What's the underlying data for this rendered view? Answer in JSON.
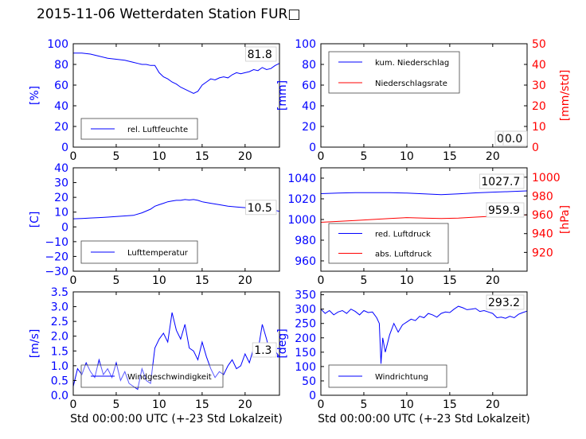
{
  "title": "2015-11-06 Wetterdaten Station FUR□",
  "colors": {
    "axis_left": "#0000ff",
    "axis_right": "#ff0000",
    "series_blue": "#0000ff",
    "series_red": "#ff0000",
    "legend_border": "#444444",
    "value_box_border": "#cccccc"
  },
  "chart_data": [
    {
      "type": "line",
      "panel": "top-left",
      "xlim": [
        0,
        24
      ],
      "xticks": [
        0,
        5,
        10,
        15,
        20
      ],
      "ylim": [
        0,
        100
      ],
      "yticks": [
        0,
        20,
        40,
        60,
        80,
        100
      ],
      "ylabel": "[%]",
      "grid": false,
      "legend_position": "lower-left",
      "series": [
        {
          "name": "rel. Luftfeuchte",
          "color": "#0000ff",
          "x": [
            0,
            1,
            2,
            3,
            4,
            5,
            6,
            7,
            7.5,
            8,
            8.5,
            9,
            9.5,
            10,
            10.5,
            11,
            11.5,
            12,
            12.5,
            13,
            13.5,
            14,
            14.5,
            15,
            15.5,
            16,
            16.5,
            17,
            17.5,
            18,
            18.5,
            19,
            19.5,
            20,
            20.5,
            21,
            21.5,
            22,
            22.5,
            23,
            23.5,
            24
          ],
          "y": [
            91,
            91,
            90,
            88,
            86,
            85,
            84,
            82,
            81,
            80,
            80,
            79,
            79,
            72,
            68,
            66,
            63,
            61,
            58,
            56,
            54,
            52,
            54,
            60,
            63,
            66,
            65,
            67,
            68,
            67,
            70,
            72,
            71,
            72,
            73,
            75,
            74,
            77,
            75,
            76,
            79,
            81
          ]
        }
      ],
      "value_label": "81.8"
    },
    {
      "type": "line",
      "panel": "top-right",
      "xlim": [
        0,
        24
      ],
      "xticks": [
        0,
        5,
        10,
        15,
        20
      ],
      "ylim": [
        0,
        100
      ],
      "yticks": [
        0,
        20,
        40,
        60,
        80,
        100
      ],
      "ylabel": "[mm]",
      "y2lim": [
        0,
        50
      ],
      "y2ticks": [
        0,
        10,
        20,
        30,
        40,
        50
      ],
      "y2label": "[mm/std]",
      "grid": false,
      "legend_position": "upper-left",
      "series": [
        {
          "name": "kum. Niederschlag",
          "color": "#0000ff",
          "axis": "left",
          "x": [
            0,
            24
          ],
          "y": [
            0,
            0
          ]
        },
        {
          "name": "Niederschlagsrate",
          "color": "#ff0000",
          "axis": "right",
          "x": [
            0,
            24
          ],
          "y": [
            0,
            0
          ]
        }
      ],
      "value_labels": [
        "0.0",
        "0.0"
      ]
    },
    {
      "type": "line",
      "panel": "middle-left",
      "xlim": [
        0,
        24
      ],
      "xticks": [
        0,
        5,
        10,
        15,
        20
      ],
      "ylim": [
        -30,
        40
      ],
      "yticks": [
        -30,
        -20,
        -10,
        0,
        10,
        20,
        30,
        40
      ],
      "ylabel": "[C]",
      "grid": false,
      "legend_position": "lower-left",
      "series": [
        {
          "name": "Lufttemperatur",
          "color": "#0000ff",
          "x": [
            0,
            1,
            2,
            3,
            4,
            5,
            6,
            7,
            8,
            9,
            9.5,
            10,
            10.5,
            11,
            11.5,
            12,
            12.5,
            13,
            13.5,
            14,
            14.5,
            15,
            16,
            17,
            18,
            19,
            20,
            21,
            22,
            23,
            24
          ],
          "y": [
            5.5,
            5.7,
            6,
            6.3,
            6.6,
            7,
            7.4,
            7.8,
            9.5,
            12,
            14,
            15,
            16,
            17,
            17.5,
            18,
            18,
            18.5,
            18.2,
            18.5,
            18,
            17,
            16,
            15,
            14,
            13.5,
            13,
            12.5,
            13,
            12,
            10.5
          ]
        }
      ],
      "value_label": "10.5"
    },
    {
      "type": "line",
      "panel": "middle-right",
      "xlim": [
        0,
        24
      ],
      "xticks": [
        0,
        5,
        10,
        15,
        20
      ],
      "ylim": [
        950,
        1050
      ],
      "yticks": [
        960,
        980,
        1000,
        1020,
        1040
      ],
      "y2lim": [
        900,
        1010
      ],
      "y2ticks": [
        920,
        940,
        960,
        980,
        1000
      ],
      "y2label": "[hPa]",
      "grid": false,
      "legend_position": "lower-left",
      "series": [
        {
          "name": "red. Luftdruck",
          "color": "#0000ff",
          "axis": "left",
          "x": [
            0,
            2,
            4,
            6,
            8,
            10,
            12,
            14,
            16,
            18,
            20,
            22,
            24
          ],
          "y": [
            1025,
            1025.5,
            1026,
            1026,
            1026,
            1025.5,
            1024.8,
            1024,
            1024.8,
            1025.8,
            1026.5,
            1027,
            1027.7
          ]
        },
        {
          "name": "abs. Luftdruck",
          "color": "#ff0000",
          "axis": "right",
          "x": [
            0,
            2,
            4,
            6,
            8,
            10,
            12,
            14,
            16,
            18,
            20,
            22,
            24
          ],
          "y": [
            952,
            953,
            954,
            955,
            956,
            957,
            956.5,
            956,
            956.5,
            957.5,
            958.5,
            959.3,
            959.9
          ]
        }
      ],
      "value_labels": [
        "1027.7",
        "959.9"
      ]
    },
    {
      "type": "line",
      "panel": "bottom-left",
      "xlim": [
        0,
        24
      ],
      "xticks": [
        0,
        5,
        10,
        15,
        20
      ],
      "ylim": [
        0,
        3.5
      ],
      "yticks": [
        0.0,
        0.5,
        1.0,
        1.5,
        2.0,
        2.5,
        3.0,
        3.5
      ],
      "ylabel": "[m/s]",
      "xlabel": "Std 00:00:00 UTC (+-23 Std Lokalzeit)",
      "grid": false,
      "legend_position": "lower-center",
      "series": [
        {
          "name": "Windgeschwindigkeit",
          "color": "#0000ff",
          "x": [
            0,
            0.5,
            1,
            1.5,
            2,
            2.5,
            3,
            3.5,
            4,
            4.5,
            5,
            5.5,
            6,
            6.5,
            7,
            7.5,
            8,
            8.5,
            9,
            9.5,
            10,
            10.5,
            11,
            11.5,
            12,
            12.5,
            13,
            13.5,
            14,
            14.5,
            15,
            15.5,
            16,
            16.5,
            17,
            17.5,
            18,
            18.5,
            19,
            19.5,
            20,
            20.5,
            21,
            21.5,
            22,
            22.5,
            23,
            23.5,
            24
          ],
          "y": [
            0.3,
            0.9,
            0.7,
            1.1,
            0.8,
            0.6,
            1.2,
            0.7,
            0.9,
            0.6,
            1.1,
            0.5,
            0.8,
            0.4,
            0.3,
            0.2,
            0.9,
            0.5,
            0.4,
            1.6,
            1.9,
            2.1,
            1.8,
            2.8,
            2.2,
            1.9,
            2.4,
            1.6,
            1.5,
            1.2,
            1.8,
            1.3,
            0.9,
            0.6,
            0.8,
            0.7,
            1.0,
            1.2,
            0.9,
            1.0,
            1.4,
            1.1,
            1.6,
            1.5,
            2.4,
            1.9,
            1.3,
            1.5,
            1.3
          ]
        }
      ],
      "value_label": "1.3"
    },
    {
      "type": "line",
      "panel": "bottom-right",
      "xlim": [
        0,
        24
      ],
      "xticks": [
        0,
        5,
        10,
        15,
        20
      ],
      "ylim": [
        0,
        360
      ],
      "yticks": [
        0,
        50,
        100,
        150,
        200,
        250,
        300,
        350
      ],
      "ylabel": "[deg]",
      "xlabel": "Std 00:00:00 UTC (+-23 Std Lokalzeit)",
      "grid": false,
      "legend_position": "lower-left",
      "series": [
        {
          "name": "Windrichtung",
          "color": "#0000ff",
          "x": [
            0,
            0.5,
            1,
            1.5,
            2,
            2.5,
            3,
            3.5,
            4,
            4.5,
            5,
            5.5,
            6,
            6.5,
            6.8,
            7,
            7.2,
            7.5,
            8,
            8.5,
            9,
            9.5,
            10,
            10.5,
            11,
            11.5,
            12,
            12.5,
            13,
            13.5,
            14,
            14.5,
            15,
            15.5,
            16,
            16.5,
            17,
            17.5,
            18,
            18.5,
            19,
            19.5,
            20,
            20.5,
            21,
            21.5,
            22,
            22.5,
            23,
            23.5,
            24
          ],
          "y": [
            300,
            285,
            295,
            280,
            290,
            295,
            285,
            300,
            292,
            280,
            295,
            288,
            290,
            270,
            250,
            110,
            200,
            150,
            210,
            250,
            220,
            245,
            255,
            265,
            260,
            275,
            270,
            285,
            280,
            272,
            285,
            290,
            288,
            300,
            310,
            305,
            298,
            300,
            302,
            292,
            295,
            290,
            285,
            270,
            272,
            268,
            275,
            270,
            282,
            288,
            293
          ]
        }
      ],
      "value_label": "293.2"
    }
  ]
}
